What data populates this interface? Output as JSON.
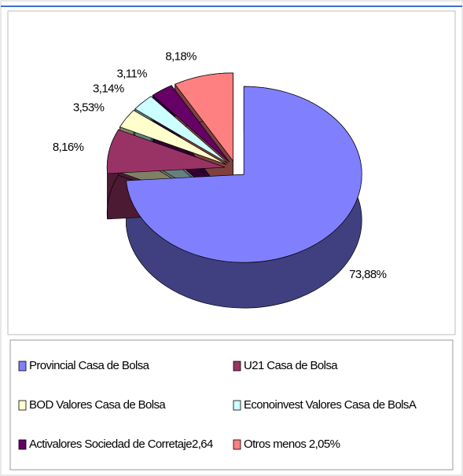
{
  "chart_data": {
    "type": "pie",
    "categories": [
      "Provincial Casa de Bolsa",
      "U21 Casa de Bolsa",
      "BOD Valores Casa de Bolsa",
      "Econoinvest Valores Casa de BolsA",
      "Activalores Sociedad de Corretaje2,64",
      "Otros menos  2,05%"
    ],
    "values": [
      73.88,
      8.16,
      3.53,
      3.14,
      3.11,
      8.18
    ],
    "value_labels": [
      "73,88%",
      "8,16%",
      "3,53%",
      "3,14%",
      "3,11%",
      "8,18%"
    ],
    "colors": [
      "#8080ff",
      "#993366",
      "#ffffcc",
      "#ccffff",
      "#660066",
      "#ff8080"
    ],
    "legend": "bottom"
  }
}
